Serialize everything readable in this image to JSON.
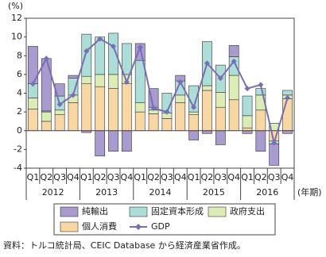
{
  "chart_data": {
    "type": "bar",
    "stacked": true,
    "y_unit": "(%)",
    "x_unit": "(年期)",
    "categories": [
      "Q1",
      "Q2",
      "Q3",
      "Q4",
      "Q1",
      "Q2",
      "Q3",
      "Q4",
      "Q1",
      "Q2",
      "Q3",
      "Q4",
      "Q1",
      "Q2",
      "Q3",
      "Q4",
      "Q1",
      "Q2",
      "Q3",
      "Q4"
    ],
    "years": [
      "2012",
      "2013",
      "2014",
      "2015",
      "2016"
    ],
    "series": [
      {
        "name": "個人消費",
        "color": "#f9d7a3",
        "values": [
          2.3,
          1.0,
          1.7,
          3.0,
          5.0,
          4.7,
          4.5,
          5.0,
          2.0,
          1.8,
          1.3,
          3.0,
          1.7,
          4.3,
          2.5,
          3.3,
          0.3,
          2.2,
          -1.1,
          3.4
        ]
      },
      {
        "name": "政府支出",
        "color": "#dcedb4",
        "values": [
          1.2,
          1.0,
          0.5,
          0.8,
          0.8,
          1.3,
          1.5,
          1.0,
          1.0,
          0.4,
          0.6,
          0.8,
          0.3,
          0.5,
          1.6,
          2.6,
          1.3,
          1.6,
          0.8,
          0.4
        ]
      },
      {
        "name": "固定資本形成",
        "color": "#abded6",
        "values": [
          1.5,
          0.1,
          1.5,
          1.8,
          4.5,
          4.0,
          4.4,
          3.3,
          4.5,
          0.3,
          2.1,
          1.5,
          2.8,
          4.7,
          2.9,
          2.0,
          2.1,
          0.7,
          -0.3,
          0.5
        ]
      },
      {
        "name": "純輸出",
        "color": "#a79bd0",
        "values": [
          4.0,
          5.6,
          1.3,
          0.3,
          -0.2,
          -2.7,
          -2.2,
          -2.2,
          1.8,
          2.0,
          0.0,
          0.6,
          -1.0,
          -0.3,
          -1.5,
          1.2,
          -0.3,
          -2.2,
          -2.3,
          -0.3
        ]
      },
      {
        "name": "GDP",
        "type": "line",
        "color": "#7a6db8",
        "values": [
          5.0,
          7.7,
          2.8,
          3.8,
          8.5,
          9.8,
          9.0,
          5.2,
          8.9,
          2.4,
          2.0,
          5.2,
          2.5,
          7.2,
          5.6,
          7.4,
          4.5,
          4.9,
          -1.3,
          3.5
        ]
      }
    ],
    "ylim": [
      -4,
      12
    ],
    "yticks": [
      -4,
      -2,
      0,
      2,
      4,
      6,
      8,
      10,
      12
    ],
    "grid": false,
    "source": "資料：トルコ統計局、CEIC Database から経済産業省作成。"
  }
}
